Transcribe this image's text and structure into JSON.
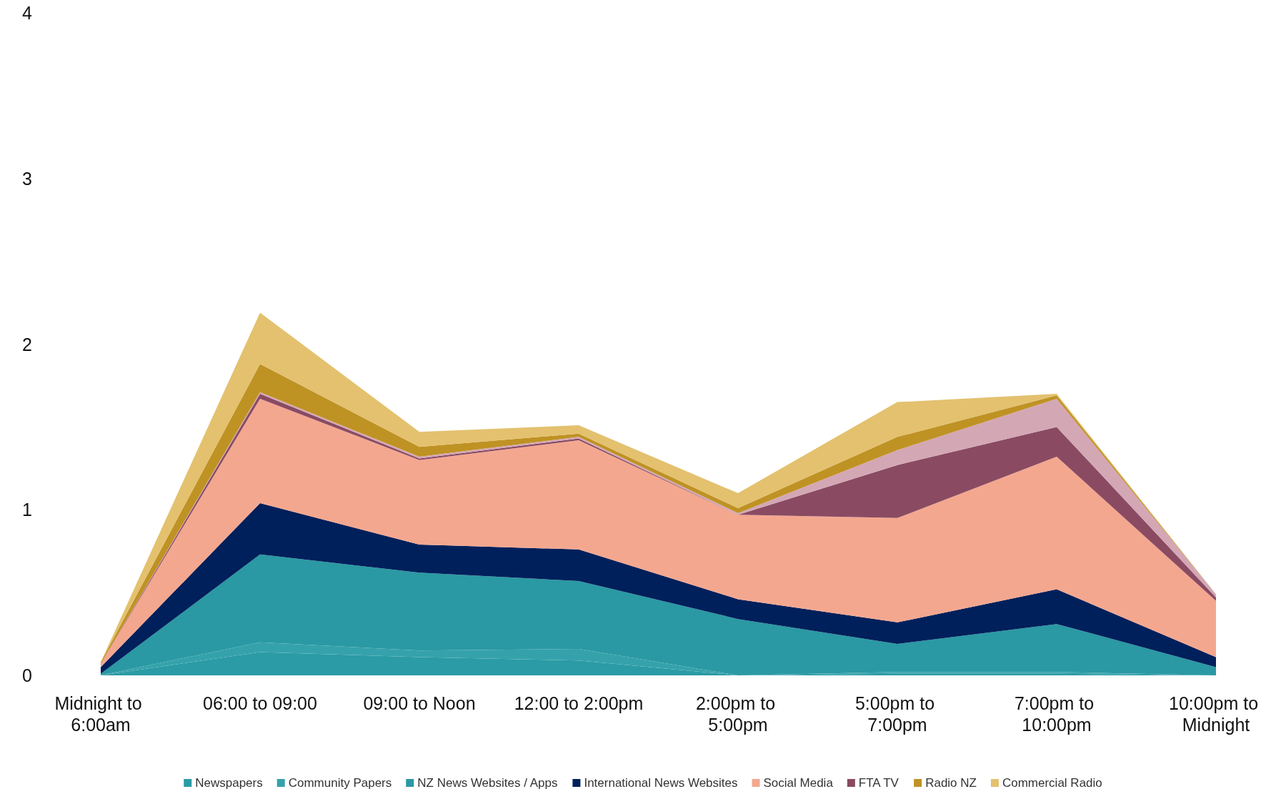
{
  "chart_data": {
    "type": "area",
    "stacked": true,
    "categories": [
      "Midnight to 6:00am",
      "06:00 to 09:00",
      "09:00 to Noon",
      "12:00 to 2:00pm",
      "2:00pm to 5:00pm",
      "5:00pm to 7:00pm",
      "7:00pm to 10:00pm",
      "10:00pm to Midnight"
    ],
    "series": [
      {
        "name": "Newspapers",
        "color": "#2b9ba5",
        "values": [
          0,
          0.14,
          0.11,
          0.09,
          0,
          0.01,
          0.01,
          0
        ]
      },
      {
        "name": "Community Papers",
        "color": "#35a2ab",
        "values": [
          0,
          0.06,
          0.04,
          0.07,
          0,
          0.01,
          0.01,
          0
        ]
      },
      {
        "name": "NZ News Websites / Apps",
        "color": "#2a99a3",
        "values": [
          0.01,
          0.53,
          0.47,
          0.41,
          0.34,
          0.17,
          0.29,
          0.05
        ]
      },
      {
        "name": "International News Websites",
        "color": "#00205b",
        "values": [
          0.04,
          0.31,
          0.17,
          0.19,
          0.12,
          0.13,
          0.21,
          0.06
        ]
      },
      {
        "name": "Social Media",
        "color": "#f4a78f",
        "values": [
          0.02,
          0.63,
          0.51,
          0.66,
          0.51,
          0.63,
          0.8,
          0.34
        ]
      },
      {
        "name": "FTA TV",
        "color": "#8a4b62",
        "values": [
          0,
          0.03,
          0.01,
          0.01,
          0,
          0.32,
          0.18,
          0.02
        ]
      },
      {
        "color": "#d4a7b5",
        "values": [
          0,
          0.01,
          0.01,
          0.01,
          0.01,
          0.09,
          0.17,
          0.02
        ]
      },
      {
        "name": "Radio NZ",
        "color": "#bf9224",
        "values": [
          0.01,
          0.17,
          0.06,
          0.02,
          0.03,
          0.08,
          0.02,
          0
        ]
      },
      {
        "name": "Commercial Radio",
        "color": "#e3c16e",
        "values": [
          0,
          0.31,
          0.09,
          0.05,
          0.09,
          0.21,
          0.01,
          0
        ]
      }
    ],
    "ylim": [
      0,
      4
    ],
    "yticks": [
      0,
      1,
      2,
      3,
      4
    ],
    "grid": false,
    "legend": "bottom"
  }
}
